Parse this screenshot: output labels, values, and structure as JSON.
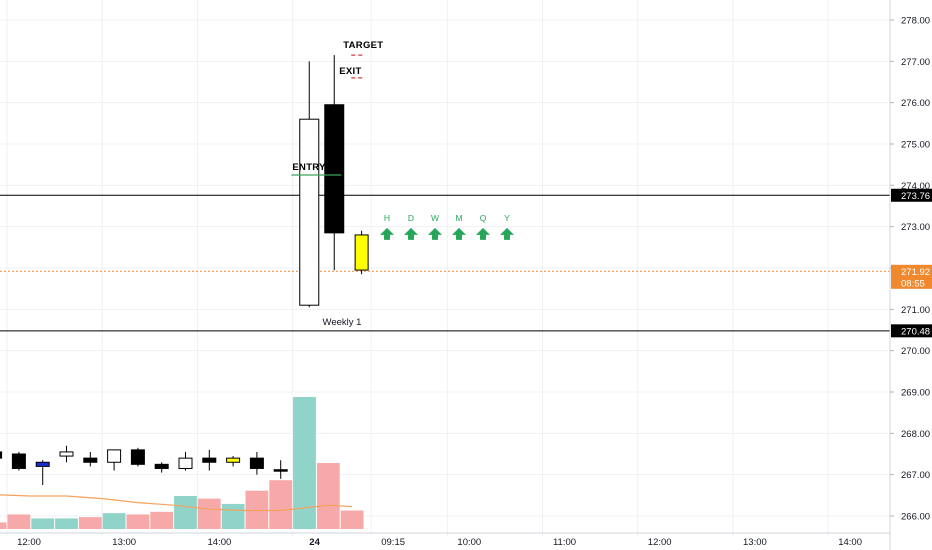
{
  "chart_data": {
    "type": "candlestick",
    "price_axis": {
      "ticks": [
        278,
        277,
        276,
        275,
        274,
        273,
        272,
        271,
        270,
        269,
        268,
        267,
        266
      ],
      "tick_labels": [
        "278.00",
        "277.00",
        "276.00",
        "275.00",
        "274.00",
        "273.00",
        "272.00",
        "271.00",
        "270.00",
        "269.00",
        "268.00",
        "267.00",
        "266.00"
      ]
    },
    "time_axis": {
      "labels": [
        {
          "t": 0,
          "text": "12:00"
        },
        {
          "t": 4,
          "text": "13:00"
        },
        {
          "t": 8,
          "text": "14:00"
        },
        {
          "t": 12,
          "text": "24"
        },
        {
          "t": 15.3,
          "text": "09:15"
        },
        {
          "t": 18.5,
          "text": "10:00"
        },
        {
          "t": 22.5,
          "text": "11:00"
        },
        {
          "t": 26.5,
          "text": "12:00"
        },
        {
          "t": 30.5,
          "text": "13:00"
        },
        {
          "t": 34.5,
          "text": "14:00"
        }
      ]
    },
    "candles": [
      {
        "t": -0.5,
        "o": 267.4,
        "h": 267.55,
        "l": 267.25,
        "c": 267.55,
        "color": "black"
      },
      {
        "t": 0.5,
        "o": 267.5,
        "h": 267.55,
        "l": 267.1,
        "c": 267.15,
        "color": "black"
      },
      {
        "t": 1.5,
        "o": 267.3,
        "h": 267.35,
        "l": 266.75,
        "c": 267.2,
        "color": "blue"
      },
      {
        "t": 2.5,
        "o": 267.45,
        "h": 267.7,
        "l": 267.3,
        "c": 267.55,
        "color": "white"
      },
      {
        "t": 3.5,
        "o": 267.4,
        "h": 267.55,
        "l": 267.2,
        "c": 267.3,
        "color": "black"
      },
      {
        "t": 4.5,
        "o": 267.3,
        "h": 267.6,
        "l": 267.1,
        "c": 267.6,
        "color": "white"
      },
      {
        "t": 5.5,
        "o": 267.6,
        "h": 267.65,
        "l": 267.2,
        "c": 267.25,
        "color": "black"
      },
      {
        "t": 6.5,
        "o": 267.25,
        "h": 267.3,
        "l": 267.05,
        "c": 267.15,
        "color": "black"
      },
      {
        "t": 7.5,
        "o": 267.15,
        "h": 267.55,
        "l": 267.1,
        "c": 267.4,
        "color": "white"
      },
      {
        "t": 8.5,
        "o": 267.4,
        "h": 267.6,
        "l": 267.1,
        "c": 267.3,
        "color": "black"
      },
      {
        "t": 9.5,
        "o": 267.3,
        "h": 267.45,
        "l": 267.2,
        "c": 267.4,
        "color": "yellow"
      },
      {
        "t": 10.5,
        "o": 267.4,
        "h": 267.55,
        "l": 267.0,
        "c": 267.15,
        "color": "black"
      },
      {
        "t": 11.5,
        "o": 267.1,
        "h": 267.35,
        "l": 266.9,
        "c": 267.12,
        "color": "black"
      },
      {
        "t": 12.7,
        "o": 271.1,
        "h": 277.0,
        "l": 271.05,
        "c": 275.6,
        "color": "white"
      },
      {
        "t": 13.75,
        "o": 275.95,
        "h": 277.15,
        "l": 271.95,
        "c": 272.85,
        "color": "black"
      },
      {
        "t": 14.9,
        "o": 271.95,
        "h": 272.9,
        "l": 271.85,
        "c": 272.8,
        "color": "yellow"
      }
    ],
    "volume": [
      {
        "t": -0.5,
        "v": 0.05,
        "color": "#f7a9a9"
      },
      {
        "t": 0.5,
        "v": 0.11,
        "color": "#f7a9a9"
      },
      {
        "t": 1.5,
        "v": 0.08,
        "color": "#8fd3c9"
      },
      {
        "t": 2.5,
        "v": 0.08,
        "color": "#8fd3c9"
      },
      {
        "t": 3.5,
        "v": 0.09,
        "color": "#f7a9a9"
      },
      {
        "t": 4.5,
        "v": 0.12,
        "color": "#8fd3c9"
      },
      {
        "t": 5.5,
        "v": 0.11,
        "color": "#f7a9a9"
      },
      {
        "t": 6.5,
        "v": 0.13,
        "color": "#f7a9a9"
      },
      {
        "t": 7.5,
        "v": 0.25,
        "color": "#8fd3c9"
      },
      {
        "t": 8.5,
        "v": 0.23,
        "color": "#f7a9a9"
      },
      {
        "t": 9.5,
        "v": 0.19,
        "color": "#8fd3c9"
      },
      {
        "t": 10.5,
        "v": 0.29,
        "color": "#f7a9a9"
      },
      {
        "t": 11.5,
        "v": 0.37,
        "color": "#f7a9a9"
      },
      {
        "t": 12.5,
        "v": 1.0,
        "color": "#8fd3c9"
      },
      {
        "t": 13.5,
        "v": 0.5,
        "color": "#f7a9a9"
      },
      {
        "t": 14.5,
        "v": 0.14,
        "color": "#f7a9a9"
      }
    ],
    "volume_ma": [
      {
        "t": -0.5,
        "v": 0.26
      },
      {
        "t": 1,
        "v": 0.25
      },
      {
        "t": 2.5,
        "v": 0.25
      },
      {
        "t": 4,
        "v": 0.23
      },
      {
        "t": 5.5,
        "v": 0.2
      },
      {
        "t": 7,
        "v": 0.18
      },
      {
        "t": 8.5,
        "v": 0.15
      },
      {
        "t": 10,
        "v": 0.14
      },
      {
        "t": 11.5,
        "v": 0.14
      },
      {
        "t": 12.5,
        "v": 0.16
      },
      {
        "t": 13.5,
        "v": 0.18
      },
      {
        "t": 14.5,
        "v": 0.17
      }
    ],
    "hlines": [
      {
        "price": 273.76,
        "label": "273.76",
        "style": "solid",
        "color": "#000000",
        "badge_bg": "#000000",
        "badge_fg": "#ffffff"
      },
      {
        "price": 271.92,
        "label": "271.92",
        "sub": "08:55",
        "style": "dotted",
        "color": "#f0892e",
        "badge_bg": "#f0892e",
        "badge_fg": "#ffffff"
      },
      {
        "price": 270.48,
        "label": "270.48",
        "style": "solid",
        "color": "#000000",
        "badge_bg": "#000000",
        "badge_fg": "#ffffff"
      }
    ],
    "annotations": {
      "entry": {
        "text": "ENTRY",
        "price": 274.25,
        "t_from": 11.95,
        "t_to": 14.05
      },
      "exit": {
        "text": "EXIT",
        "price": 276.6
      },
      "target": {
        "text": "TARGET",
        "price": 277.15
      },
      "weekly_label": "Weekly 1"
    },
    "arrows": [
      "H",
      "D",
      "W",
      "M",
      "Q",
      "Y"
    ]
  }
}
